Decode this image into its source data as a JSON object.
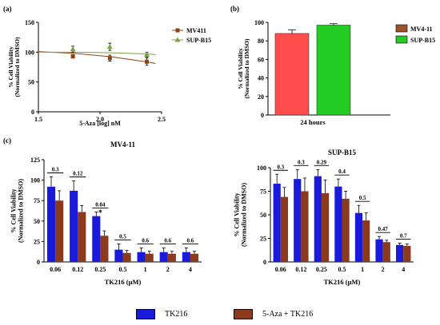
{
  "panels": {
    "a": "(a)",
    "b": "(b)",
    "c": "(c)"
  },
  "chart_data": [
    {
      "id": "a",
      "type": "scatter",
      "xlabel": "5-Aza [log] nM",
      "ylabel": "% Cell Viability\n(Normalized to DMSO)",
      "xlim": [
        1.5,
        2.5
      ],
      "ylim": [
        0,
        150
      ],
      "xticks": [
        "1.5",
        "2.0",
        "2.5"
      ],
      "yticks": [
        "0",
        "50",
        "100",
        "150"
      ],
      "legend_position": "right",
      "series": [
        {
          "name": "MV411",
          "color": "#8B4513",
          "marker": "square",
          "x": [
            1.78,
            2.08,
            2.38
          ],
          "y": [
            93,
            90,
            84
          ],
          "err": [
            3,
            5,
            6
          ],
          "fit": [
            [
              1.5,
              101
            ],
            [
              1.8,
              98
            ],
            [
              2.1,
              92
            ],
            [
              2.4,
              83
            ],
            [
              2.45,
              81
            ]
          ]
        },
        {
          "name": "SUP-B15",
          "color": "#7BA23F",
          "marker": "triangle",
          "x": [
            1.78,
            2.08,
            2.38
          ],
          "y": [
            105,
            109,
            96
          ],
          "err": [
            5,
            6,
            4
          ],
          "fit": [
            [
              1.5,
              100
            ],
            [
              1.8,
              100
            ],
            [
              2.1,
              99
            ],
            [
              2.4,
              97
            ],
            [
              2.45,
              96
            ]
          ]
        }
      ]
    },
    {
      "id": "b",
      "type": "bar",
      "ylabel": "% Cell Viability\n(Normalized to DMSO)",
      "xlabel": "24 hours",
      "ylim": [
        0,
        100
      ],
      "yticks": [
        "0",
        "20",
        "40",
        "60",
        "80",
        "100"
      ],
      "legend_position": "right",
      "series": [
        {
          "name": "MV4-11",
          "value": 88,
          "err": 4,
          "color": "#ff4d4d",
          "legend_color": "#a0522d"
        },
        {
          "name": "SUP-B15",
          "value": 97,
          "err": 1.5,
          "color": "#22cc22",
          "legend_color": "#22cc22"
        }
      ]
    },
    {
      "id": "c1",
      "type": "bar",
      "title": "MV4-11",
      "xlabel": "TK216 (µM)",
      "ylabel": "% Cell Viability\n(Normalized to DMSO)",
      "ylim": [
        0,
        125
      ],
      "yticks": [
        "0",
        "25",
        "50",
        "75",
        "100",
        "125"
      ],
      "categories": [
        "0.06",
        "0.12",
        "0.25",
        "0.5",
        "1",
        "2",
        "4"
      ],
      "series": [
        {
          "name": "TK216",
          "color": "#1a1adb",
          "values": [
            92,
            87,
            56,
            15,
            12,
            12,
            12
          ],
          "err": [
            12,
            12,
            5,
            7,
            5,
            5,
            5
          ]
        },
        {
          "name": "5-Aza + TK216",
          "color": "#8b3a1e",
          "values": [
            75,
            61,
            32,
            11,
            10,
            10,
            10
          ],
          "err": [
            12,
            8,
            6,
            3,
            3,
            3,
            3
          ]
        }
      ],
      "annotations": [
        "0.3",
        "0.12",
        "0.04",
        "0.5",
        "0.6",
        "0.6",
        "0.6"
      ],
      "star_index": 2,
      "star_label": "*"
    },
    {
      "id": "c2",
      "type": "bar",
      "title": "SUP-B15",
      "xlabel": "TK216 (µM)",
      "ylabel": "% Cell Viability\n(Normalized to DMSO)",
      "ylim": [
        0,
        100
      ],
      "yticks": [
        "0",
        "25",
        "50",
        "75",
        "100"
      ],
      "categories": [
        "0.06",
        "0.12",
        "0.25",
        "0.5",
        "1",
        "2",
        "4"
      ],
      "series": [
        {
          "name": "TK216",
          "color": "#1a1adb",
          "values": [
            83,
            88,
            91,
            80,
            52,
            24,
            18
          ],
          "err": [
            10,
            10,
            7,
            8,
            8,
            3,
            2
          ]
        },
        {
          "name": "5-Aza + TK216",
          "color": "#8b3a1e",
          "values": [
            69,
            75,
            73,
            67,
            44,
            21,
            17
          ],
          "err": [
            10,
            14,
            14,
            8,
            8,
            2,
            2
          ]
        }
      ],
      "annotations": [
        "0.3",
        "0.3",
        "0.29",
        "0.4",
        "0.5",
        "0.47",
        "0.7"
      ]
    }
  ],
  "legend": {
    "items": [
      {
        "label": "TK216",
        "color": "#1a1adb"
      },
      {
        "label": "5-Aza + TK216",
        "color": "#8b3a1e"
      }
    ]
  }
}
